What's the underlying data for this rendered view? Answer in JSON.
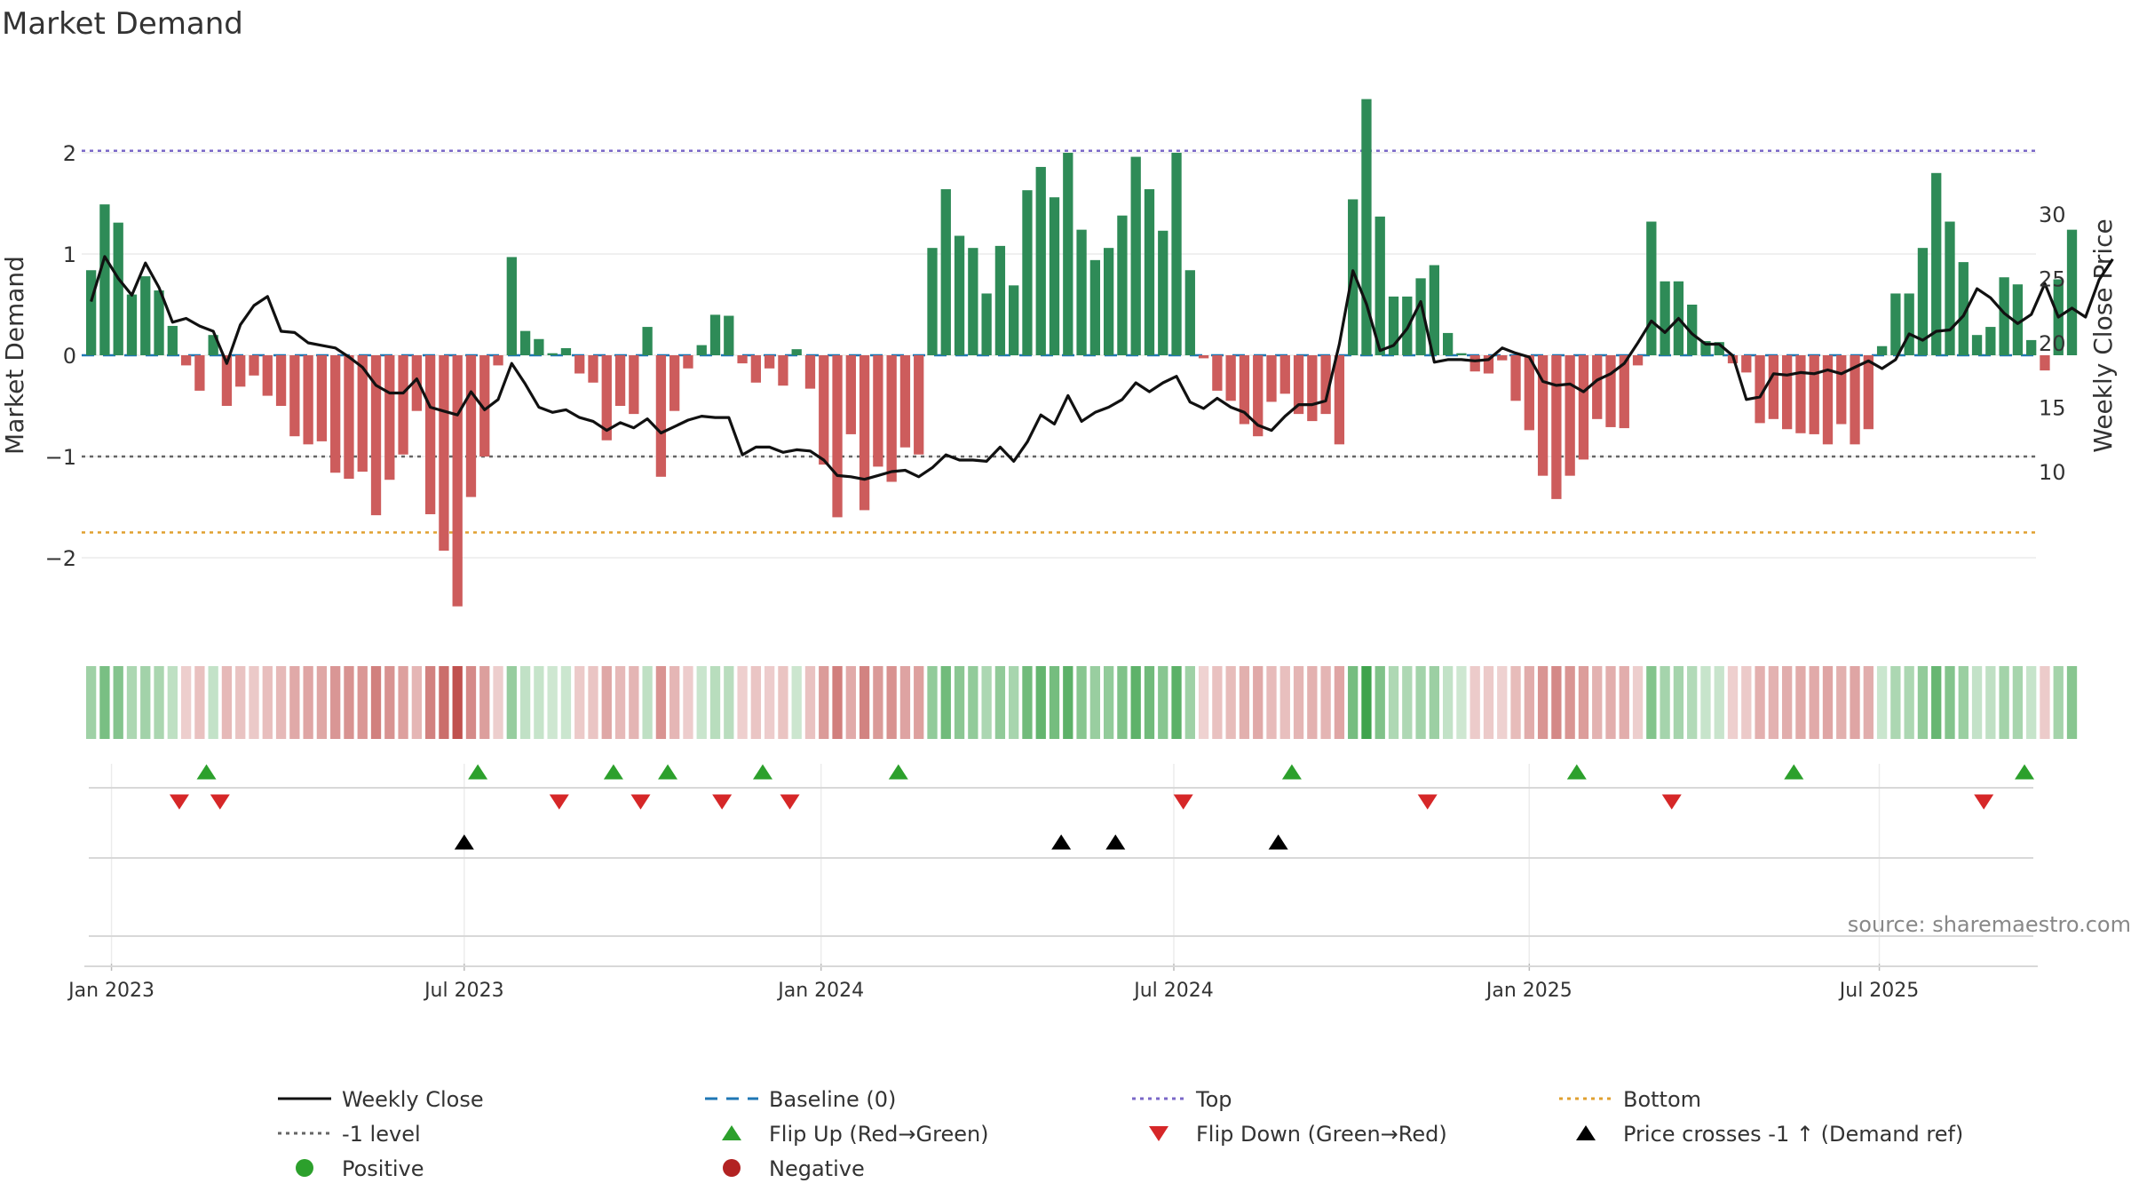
{
  "chart_data": {
    "type": "bar",
    "title": "Market Demand",
    "ylabel_left": "Market Demand",
    "ylabel_right": "Weekly Close Price",
    "source": "source: sharemaestro.com",
    "ylim_left": [
      -2.7,
      2.7
    ],
    "ylim_right": [
      8,
      30
    ],
    "yticks_left": [
      {
        "v": 2,
        "label": "2"
      },
      {
        "v": 1,
        "label": "1"
      },
      {
        "v": 0,
        "label": "0"
      },
      {
        "v": -1,
        "label": "−1"
      },
      {
        "v": -2,
        "label": "−2"
      }
    ],
    "yticks_right": [
      {
        "v": 30,
        "label": "30"
      },
      {
        "v": 25,
        "label": "25"
      },
      {
        "v": 20,
        "label": "20"
      },
      {
        "v": 15,
        "label": "15"
      },
      {
        "v": 10,
        "label": "10"
      }
    ],
    "xticks": [
      {
        "week": 1.5,
        "label": "Jan 2023"
      },
      {
        "week": 27.5,
        "label": "Jul 2023"
      },
      {
        "week": 53.8,
        "label": "Jan 2024"
      },
      {
        "week": 79.8,
        "label": "Jul 2024"
      },
      {
        "week": 106,
        "label": "Jan 2025"
      },
      {
        "week": 131.8,
        "label": "Jul 2025"
      }
    ],
    "reference_lines": {
      "top": 2.02,
      "bottom": -1.75,
      "minus_one_level": -1.0,
      "baseline": 0
    },
    "series": [
      {
        "name": "Market Demand",
        "values": [
          0.84,
          1.49,
          1.31,
          0.6,
          0.78,
          0.64,
          0.29,
          -0.1,
          -0.35,
          0.2,
          -0.5,
          -0.31,
          -0.2,
          -0.4,
          -0.5,
          -0.8,
          -0.88,
          -0.85,
          -1.16,
          -1.22,
          -1.15,
          -1.58,
          -1.23,
          -0.98,
          -0.55,
          -1.57,
          -1.93,
          -2.48,
          -1.4,
          -1.0,
          -0.1,
          0.97,
          0.24,
          0.16,
          0.02,
          0.07,
          -0.18,
          -0.27,
          -0.84,
          -0.5,
          -0.58,
          0.28,
          -1.2,
          -0.55,
          -0.13,
          0.1,
          0.4,
          0.39,
          -0.08,
          -0.27,
          -0.13,
          -0.3,
          0.06,
          -0.33,
          -1.08,
          -1.6,
          -0.78,
          -1.53,
          -1.1,
          -1.25,
          -0.91,
          -0.98,
          1.06,
          1.64,
          1.18,
          1.06,
          0.61,
          1.08,
          0.69,
          1.63,
          1.86,
          1.56,
          2.0,
          1.24,
          0.94,
          1.06,
          1.38,
          1.96,
          1.64,
          1.23,
          2.0,
          0.84,
          -0.03,
          -0.35,
          -0.45,
          -0.68,
          -0.8,
          -0.46,
          -0.38,
          -0.58,
          -0.65,
          -0.58,
          -0.88,
          1.54,
          2.53,
          1.37,
          0.58,
          0.58,
          0.76,
          0.89,
          0.22,
          0.02,
          -0.16,
          -0.18,
          -0.05,
          -0.45,
          -0.74,
          -1.19,
          -1.42,
          -1.19,
          -1.03,
          -0.63,
          -0.71,
          -0.72,
          -0.1,
          1.32,
          0.73,
          0.73,
          0.5,
          0.14,
          0.13,
          -0.08,
          -0.17,
          -0.67,
          -0.63,
          -0.73,
          -0.77,
          -0.78,
          -0.88,
          -0.68,
          -0.88,
          -0.73,
          0.09,
          0.61,
          0.61,
          1.06,
          1.8,
          1.32,
          0.92,
          0.2,
          0.28,
          0.77,
          0.7,
          0.15,
          -0.15,
          0.75,
          1.24
        ]
      },
      {
        "name": "Weekly Close",
        "values": [
          23.2,
          26.7,
          25.0,
          23.7,
          26.2,
          24.3,
          21.6,
          21.9,
          21.3,
          20.9,
          18.4,
          21.4,
          22.9,
          23.6,
          20.9,
          20.8,
          20.0,
          19.8,
          19.6,
          18.9,
          18.1,
          16.7,
          16.1,
          16.1,
          17.2,
          15.0,
          14.7,
          14.4,
          16.2,
          14.8,
          15.6,
          18.4,
          16.8,
          15.0,
          14.6,
          14.8,
          14.2,
          13.9,
          13.2,
          13.8,
          13.4,
          14.1,
          13.0,
          13.5,
          14.0,
          14.3,
          14.2,
          14.2,
          11.3,
          11.9,
          11.9,
          11.5,
          11.7,
          11.6,
          10.9,
          9.7,
          9.6,
          9.4,
          9.7,
          10.0,
          10.1,
          9.6,
          10.3,
          11.3,
          10.9,
          10.9,
          10.8,
          11.9,
          10.8,
          12.3,
          14.4,
          13.7,
          15.9,
          13.9,
          14.6,
          15.0,
          15.6,
          16.9,
          16.2,
          16.9,
          17.4,
          15.4,
          14.9,
          15.7,
          15.0,
          14.6,
          13.6,
          13.2,
          14.3,
          15.2,
          15.2,
          15.5,
          19.9,
          25.6,
          23.0,
          19.4,
          19.8,
          21.1,
          23.2,
          18.5,
          18.7,
          18.7,
          18.6,
          18.7,
          19.6,
          19.2,
          18.9,
          17.0,
          16.7,
          16.8,
          16.2,
          17.1,
          17.6,
          18.4,
          20.0,
          21.7,
          20.8,
          21.9,
          20.7,
          19.9,
          19.9,
          19.0,
          15.6,
          15.8,
          17.6,
          17.5,
          17.7,
          17.6,
          17.9,
          17.6,
          18.1,
          18.6,
          18.0,
          18.7,
          20.7,
          20.2,
          20.9,
          21.0,
          22.1,
          24.2,
          23.5,
          22.3,
          21.5,
          22.2,
          24.6,
          22.0,
          22.7,
          22.0,
          24.9,
          26.5
        ]
      }
    ],
    "flip_up_weeks": [
      8.5,
      28.5,
      38.5,
      42.5,
      49.5,
      59.5,
      88.5,
      109.5,
      125.5,
      142.5
    ],
    "flip_down_weeks": [
      6.5,
      9.5,
      34.5,
      40.5,
      46.5,
      51.5,
      80.5,
      98.5,
      116.5,
      139.5
    ],
    "price_cross_weeks": [
      27.5,
      71.5,
      75.5,
      87.5
    ]
  },
  "legend": {
    "items": [
      {
        "key": "line-black",
        "label": "Weekly Close"
      },
      {
        "key": "dash-blue",
        "label": "Baseline (0)"
      },
      {
        "key": "dot-purple",
        "label": "Top"
      },
      {
        "key": "dot-orange",
        "label": "Bottom"
      },
      {
        "key": "dot-gray",
        "label": "-1 level"
      },
      {
        "key": "tri-up-green",
        "label": "Flip Up (Red→Green)"
      },
      {
        "key": "tri-down-red",
        "label": "Flip Down (Green→Red)"
      },
      {
        "key": "tri-up-black",
        "label": "Price crosses -1 ↑ (Demand ref)"
      },
      {
        "key": "dot-green",
        "label": "Positive"
      },
      {
        "key": "dot-red",
        "label": "Negative"
      }
    ]
  },
  "colors": {
    "positive": "#2e8b57",
    "negative": "#cd5c5c",
    "price": "#111111",
    "baseline": "#1f77b4",
    "top": "#7b68c8",
    "bottom": "#e0a030",
    "minus_one": "#666666",
    "flip_up": "#2ca02c",
    "flip_down": "#d62728",
    "cross": "#000000",
    "legend_positive": "#2ca02c",
    "legend_negative": "#b22222"
  }
}
